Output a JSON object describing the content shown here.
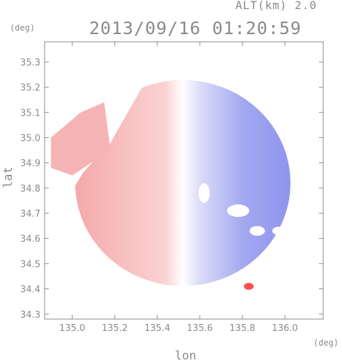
{
  "header": {
    "altitude": "ALT(km) 2.0",
    "datetime": "2013/09/16 01:20:59",
    "y_unit": "(deg)",
    "x_unit": "(deg)"
  },
  "chart_data": {
    "type": "heatmap",
    "title": "2013/09/16 01:20:59",
    "subtitle": "ALT(km) 2.0",
    "xlabel": "lon",
    "ylabel": "lat",
    "x_unit": "(deg)",
    "y_unit": "(deg)",
    "xlim": [
      134.87,
      136.18
    ],
    "ylim": [
      34.28,
      35.38
    ],
    "x_ticks": [
      135.0,
      135.2,
      135.4,
      135.6,
      135.8,
      136.0
    ],
    "x_tick_labels": [
      "135.0",
      "135.2",
      "135.4",
      "135.6",
      "135.8",
      "136.0"
    ],
    "y_ticks": [
      34.3,
      34.4,
      34.5,
      34.6,
      34.7,
      34.8,
      34.9,
      35.0,
      35.1,
      35.2,
      35.3
    ],
    "y_tick_labels": [
      "34.3",
      "34.4",
      "34.5",
      "34.6",
      "34.7",
      "34.8",
      "34.9",
      "35.0",
      "35.1",
      "35.2",
      "35.3"
    ],
    "radar_center": [
      135.52,
      34.82
    ],
    "radar_range_deg": 0.55,
    "grid": true,
    "colors": {
      "positive": "#f5a8a8",
      "negative": "#8f94ee",
      "neutral": "#ffffff",
      "axis": "#8a8a8a",
      "hot": "#ff5050"
    }
  }
}
